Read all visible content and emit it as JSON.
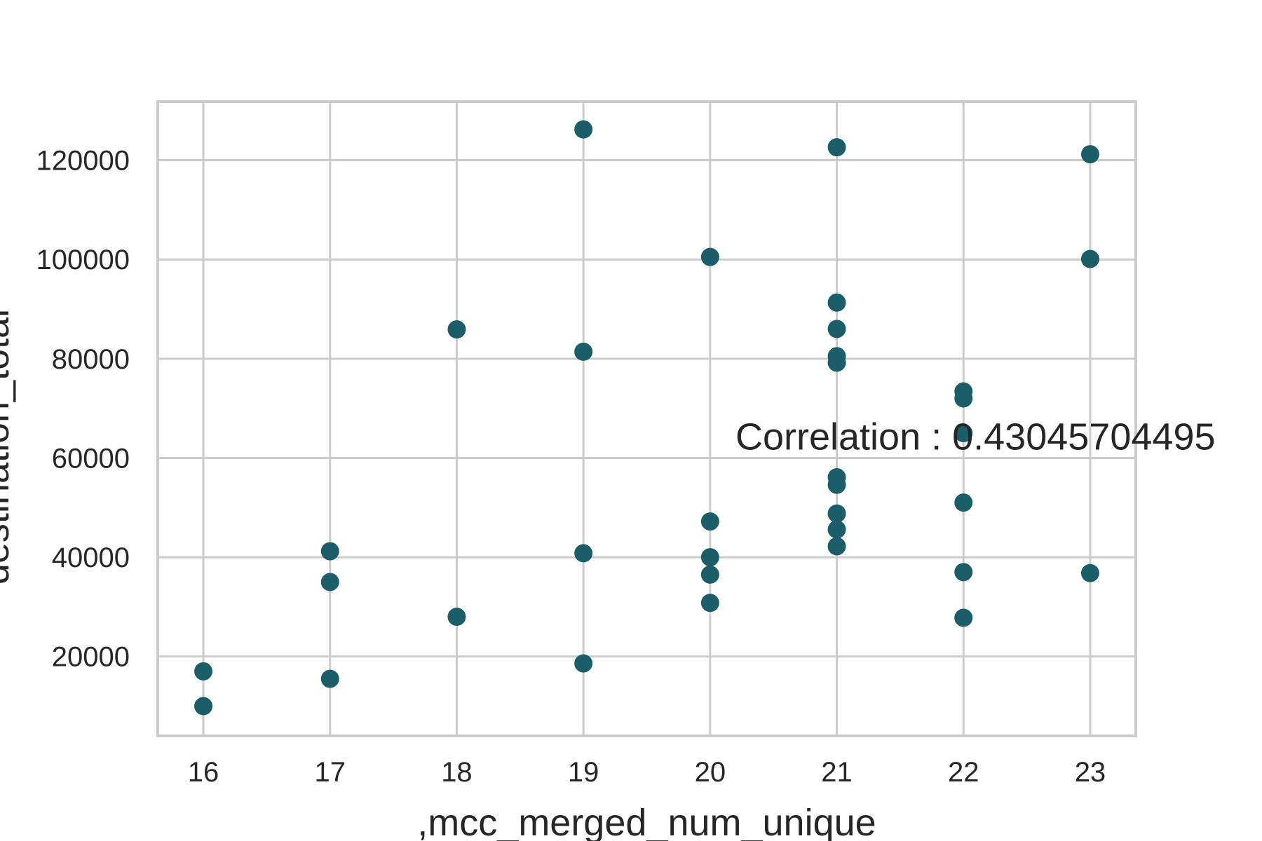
{
  "chart_data": {
    "type": "scatter",
    "title": "",
    "xlabel": ",mcc_merged_num_unique",
    "ylabel": "destination_total",
    "xlim": [
      15.64,
      23.36
    ],
    "ylim": [
      4000,
      131800
    ],
    "x_ticks": [
      16,
      17,
      18,
      19,
      20,
      21,
      22,
      23
    ],
    "y_ticks": [
      20000,
      40000,
      60000,
      80000,
      100000,
      120000
    ],
    "x_tick_labels": [
      "16",
      "17",
      "18",
      "19",
      "20",
      "21",
      "22",
      "23"
    ],
    "y_tick_labels": [
      "20000",
      "40000",
      "60000",
      "80000",
      "100000",
      "120000"
    ],
    "grid": true,
    "marker_color": "#1b5e6a",
    "annotation": "Correlation : 0.43045704495",
    "points": [
      {
        "x": 16,
        "y": 17000
      },
      {
        "x": 16,
        "y": 10000
      },
      {
        "x": 17,
        "y": 41200
      },
      {
        "x": 17,
        "y": 35000
      },
      {
        "x": 17,
        "y": 15500
      },
      {
        "x": 18,
        "y": 85900
      },
      {
        "x": 18,
        "y": 28000
      },
      {
        "x": 19,
        "y": 126200
      },
      {
        "x": 19,
        "y": 81400
      },
      {
        "x": 19,
        "y": 40800
      },
      {
        "x": 19,
        "y": 18600
      },
      {
        "x": 20,
        "y": 100500
      },
      {
        "x": 20,
        "y": 47200
      },
      {
        "x": 20,
        "y": 40000
      },
      {
        "x": 20,
        "y": 36500
      },
      {
        "x": 20,
        "y": 30800
      },
      {
        "x": 21,
        "y": 122600
      },
      {
        "x": 21,
        "y": 91300
      },
      {
        "x": 21,
        "y": 86000
      },
      {
        "x": 21,
        "y": 80500
      },
      {
        "x": 21,
        "y": 79200
      },
      {
        "x": 21,
        "y": 56100
      },
      {
        "x": 21,
        "y": 54600
      },
      {
        "x": 21,
        "y": 48800
      },
      {
        "x": 21,
        "y": 45600
      },
      {
        "x": 21,
        "y": 42200
      },
      {
        "x": 22,
        "y": 73400
      },
      {
        "x": 22,
        "y": 72000
      },
      {
        "x": 22,
        "y": 65000
      },
      {
        "x": 22,
        "y": 51000
      },
      {
        "x": 22,
        "y": 37000
      },
      {
        "x": 22,
        "y": 27800
      },
      {
        "x": 23,
        "y": 121200
      },
      {
        "x": 23,
        "y": 100100
      },
      {
        "x": 23,
        "y": 36800
      }
    ]
  }
}
